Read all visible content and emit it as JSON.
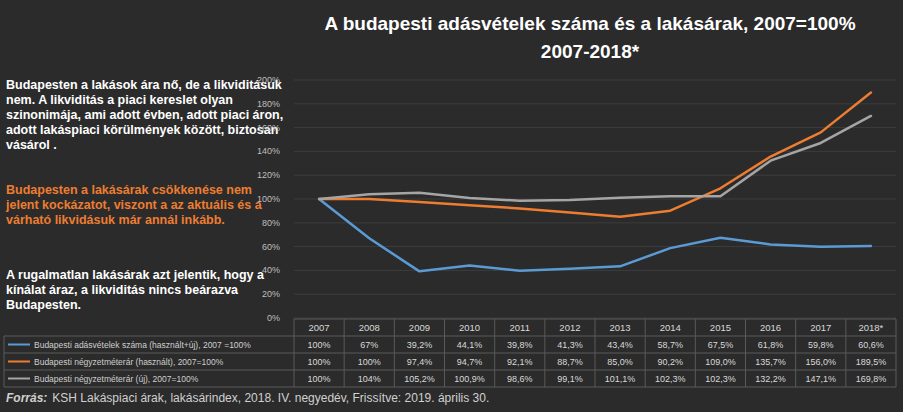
{
  "chart_data": {
    "type": "line",
    "title": "A budapesti  adásvételek száma és  a lakásárak, 2007=100%",
    "subtitle": "2007-2018*",
    "annotations": [
      "Budapesten a lakások ára nő, de a likviditásuk nem. A likviditás a piaci kereslet olyan szinonimája, ami adott évben, adott piaci áron, adott lakáspiaci körülmények között, biztosan vásárol .",
      "Budapesten a lakásárak csökkenése nem jelent kockázatot, viszont a az aktuális és a várható likvidásuk már annál inkább.",
      "A rugalmatlan lakásárak azt jelentik, hogy a kínálat áraz, a likviditás nincs beárazva Budapesten."
    ],
    "source_label": "Forrás:",
    "source": "KSH Lakáspiaci árak, lakásárindex, 2018. IV. negyedév, Frissítve: 2019. április 30.",
    "categories": [
      "2007",
      "2008",
      "2009",
      "2010",
      "2011",
      "2012",
      "2013",
      "2014",
      "2015",
      "2016",
      "2017",
      "2018*"
    ],
    "series": [
      {
        "name": "Budapesti adásvételek száma (használt+új), 2007 =100%",
        "color": "#5b9bd5",
        "values": [
          100,
          67,
          39.2,
          44.1,
          39.8,
          41.3,
          43.4,
          58.7,
          67.5,
          61.8,
          59.8,
          60.6
        ],
        "value_labels": [
          "100%",
          "67%",
          "39,2%",
          "44,1%",
          "39,8%",
          "41,3%",
          "43,4%",
          "58,7%",
          "67,5%",
          "61,8%",
          "59,8%",
          "60,6%"
        ]
      },
      {
        "name": "Budapesti négyzetméterár (használt), 2007=100%",
        "color": "#ed7d31",
        "values": [
          100,
          100,
          97.4,
          94.7,
          92.1,
          88.7,
          85.0,
          90.2,
          109.0,
          135.7,
          156.0,
          189.5
        ],
        "value_labels": [
          "100%",
          "100%",
          "97,4%",
          "94,7%",
          "92,1%",
          "88,7%",
          "85,0%",
          "90,2%",
          "109,0%",
          "135,7%",
          "156,0%",
          "189,5%"
        ]
      },
      {
        "name": "Budapesti négyzetméterár (új), 2007=100%",
        "color": "#a5a5a5",
        "values": [
          100,
          104,
          105.2,
          100.9,
          98.6,
          99.1,
          101.1,
          102.3,
          102.3,
          132.2,
          147.1,
          169.8
        ],
        "value_labels": [
          "100%",
          "104%",
          "105,2%",
          "100,9%",
          "98,6%",
          "99,1%",
          "101,1%",
          "102,3%",
          "102,3%",
          "132,2%",
          "147,1%",
          "169,8%"
        ]
      }
    ],
    "ylim": [
      0,
      200
    ],
    "yticks": [
      {
        "value": 0,
        "label": "0%"
      },
      {
        "value": 20,
        "label": "20%"
      },
      {
        "value": 40,
        "label": "40%"
      },
      {
        "value": 60,
        "label": "60%"
      },
      {
        "value": 80,
        "label": "80%"
      },
      {
        "value": 100,
        "label": "100%"
      },
      {
        "value": 120,
        "label": "120%"
      },
      {
        "value": 140,
        "label": "140%"
      },
      {
        "value": 160,
        "label": "160%"
      },
      {
        "value": 180,
        "label": "180%"
      },
      {
        "value": 200,
        "label": "200%"
      }
    ],
    "grid": true
  }
}
